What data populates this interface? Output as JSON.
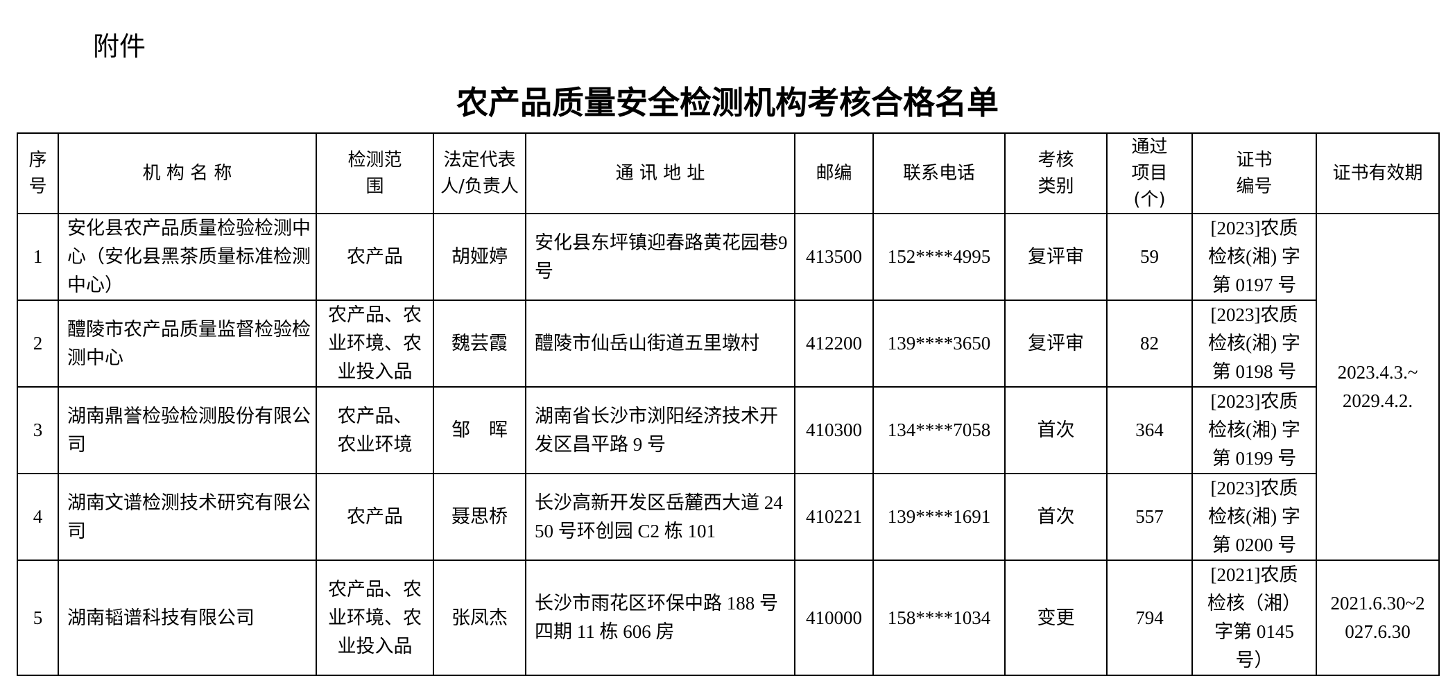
{
  "attachment_label": "附件",
  "title": "农产品质量安全检测机构考核合格名单",
  "headers": [
    "序号",
    "机 构 名 称",
    "检测范围",
    "法定代表人/负责人",
    "通 讯 地 址",
    "邮编",
    "联系电话",
    "考核类别",
    "通过项目(个)",
    "证书编号",
    "证书有效期"
  ],
  "rows": [
    {
      "no": "1",
      "name": "安化县农产品质量检验检测中心（安化县黑茶质量标准检测中心）",
      "scope": "农产品",
      "rep": "胡娅婷",
      "address": "安化县东坪镇迎春路黄花园巷9号",
      "zip": "413500",
      "phone": "152****4995",
      "type": "复评审",
      "items": "59",
      "cert": "[2023]农质检核(湘) 字第 0197 号"
    },
    {
      "no": "2",
      "name": "醴陵市农产品质量监督检验检测中心",
      "scope": "农产品、农业环境、农业投入品",
      "rep": "魏芸霞",
      "address": "醴陵市仙岳山街道五里墩村",
      "zip": "412200",
      "phone": "139****3650",
      "type": "复评审",
      "items": "82",
      "cert": "[2023]农质检核(湘) 字第 0198 号"
    },
    {
      "no": "3",
      "name": "湖南鼎誉检验检测股份有限公司",
      "scope": "农产品、农业环境",
      "rep": "邹　晖",
      "address": "湖南省长沙市浏阳经济技术开发区昌平路 9 号",
      "zip": "410300",
      "phone": "134****7058",
      "type": "首次",
      "items": "364",
      "cert": "[2023]农质检核(湘) 字第 0199 号"
    },
    {
      "no": "4",
      "name": "湖南文谱检测技术研究有限公司",
      "scope": "农产品",
      "rep": "聂思桥",
      "address": "长沙高新开发区岳麓西大道 2450 号环创园 C2 栋 101",
      "zip": "410221",
      "phone": "139****1691",
      "type": "首次",
      "items": "557",
      "cert": "[2023]农质检核(湘) 字第 0200 号"
    },
    {
      "no": "5",
      "name": "湖南韬谱科技有限公司",
      "scope": "农产品、农业环境、农业投入品",
      "rep": "张凤杰",
      "address": "长沙市雨花区环保中路 188 号四期 11 栋 606 房",
      "zip": "410000",
      "phone": "158****1034",
      "type": "变更",
      "items": "794",
      "cert": "[2021]农质检核（湘）字第 0145 号）"
    }
  ],
  "validity_1_4": "2023.4.3.~2029.4.2.",
  "validity_5": "2021.6.30~2027.6.30"
}
